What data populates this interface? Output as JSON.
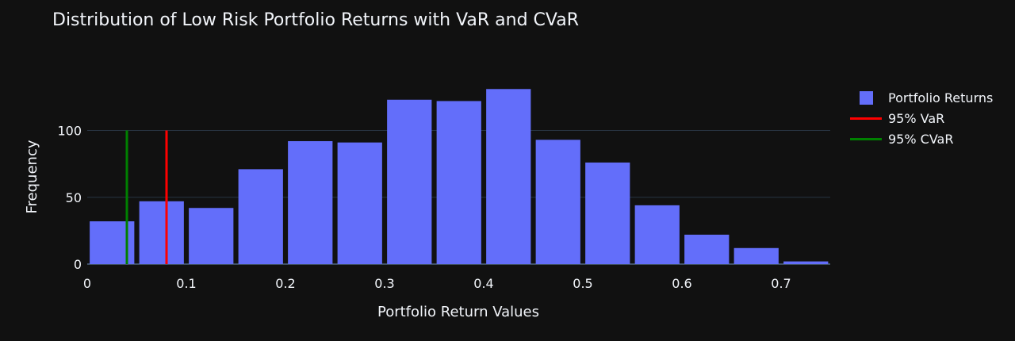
{
  "colors": {
    "background": "#111111",
    "bars": "#636efa",
    "var_line": "#ff0000",
    "cvar_line": "#008000",
    "grid": "#283442",
    "text": "#f2f5fa"
  },
  "legend": {
    "position": "right",
    "items": [
      "Portfolio Returns",
      "95% VaR",
      "95% CVaR"
    ]
  },
  "chart_data": {
    "type": "bar",
    "title": "Distribution of Low Risk Portfolio Returns with VaR and CVaR",
    "xlabel": "Portfolio Return Values",
    "ylabel": "Frequency",
    "xlim": [
      0,
      0.75
    ],
    "ylim": [
      0,
      140
    ],
    "grid": true,
    "x_ticks": [
      0,
      0.1,
      0.2,
      0.3,
      0.4,
      0.5,
      0.6,
      0.7
    ],
    "x_tick_labels": [
      "0",
      "0.1",
      "0.2",
      "0.3",
      "0.4",
      "0.5",
      "0.6",
      "0.7"
    ],
    "y_ticks": [
      0,
      50,
      100
    ],
    "y_tick_labels": [
      "0",
      "50",
      "100"
    ],
    "series": [
      {
        "name": "Portfolio Returns",
        "bin_width": 0.05,
        "bins": [
          {
            "x0": 0.0,
            "x1": 0.05,
            "value": 32
          },
          {
            "x0": 0.05,
            "x1": 0.1,
            "value": 47
          },
          {
            "x0": 0.1,
            "x1": 0.15,
            "value": 42
          },
          {
            "x0": 0.15,
            "x1": 0.2,
            "value": 71
          },
          {
            "x0": 0.2,
            "x1": 0.25,
            "value": 92
          },
          {
            "x0": 0.25,
            "x1": 0.3,
            "value": 91
          },
          {
            "x0": 0.3,
            "x1": 0.35,
            "value": 123
          },
          {
            "x0": 0.35,
            "x1": 0.4,
            "value": 122
          },
          {
            "x0": 0.4,
            "x1": 0.45,
            "value": 131
          },
          {
            "x0": 0.45,
            "x1": 0.5,
            "value": 93
          },
          {
            "x0": 0.5,
            "x1": 0.55,
            "value": 76
          },
          {
            "x0": 0.55,
            "x1": 0.6,
            "value": 44
          },
          {
            "x0": 0.6,
            "x1": 0.65,
            "value": 22
          },
          {
            "x0": 0.65,
            "x1": 0.7,
            "value": 12
          },
          {
            "x0": 0.7,
            "x1": 0.75,
            "value": 2
          }
        ]
      },
      {
        "name": "95% VaR",
        "type": "vline",
        "x": 0.08,
        "y": [
          0,
          100
        ]
      },
      {
        "name": "95% CVaR",
        "type": "vline",
        "x": 0.04,
        "y": [
          0,
          100
        ]
      }
    ]
  }
}
